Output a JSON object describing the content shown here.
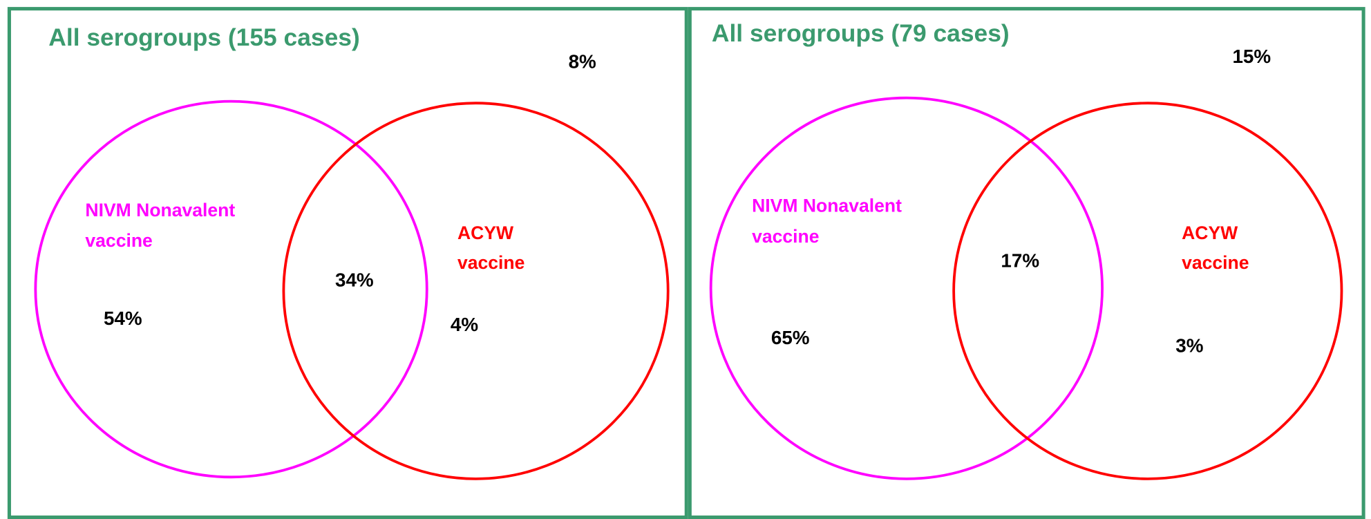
{
  "panels": [
    {
      "title": "All serogroups (155 cases)",
      "outside": "8%",
      "left": {
        "label": [
          "NIVM Nonavalent",
          "vaccine"
        ],
        "value": "54%"
      },
      "overlap": "34%",
      "right": {
        "label": [
          "ACYW",
          "vaccine"
        ],
        "value": "4%"
      }
    },
    {
      "title": "All serogroups (79 cases)",
      "outside": "15%",
      "left": {
        "label": [
          "NIVM Nonavalent",
          "vaccine"
        ],
        "value": "65%"
      },
      "overlap": "17%",
      "right": {
        "label": [
          "ACYW",
          "vaccine"
        ],
        "value": "3%"
      }
    }
  ]
}
